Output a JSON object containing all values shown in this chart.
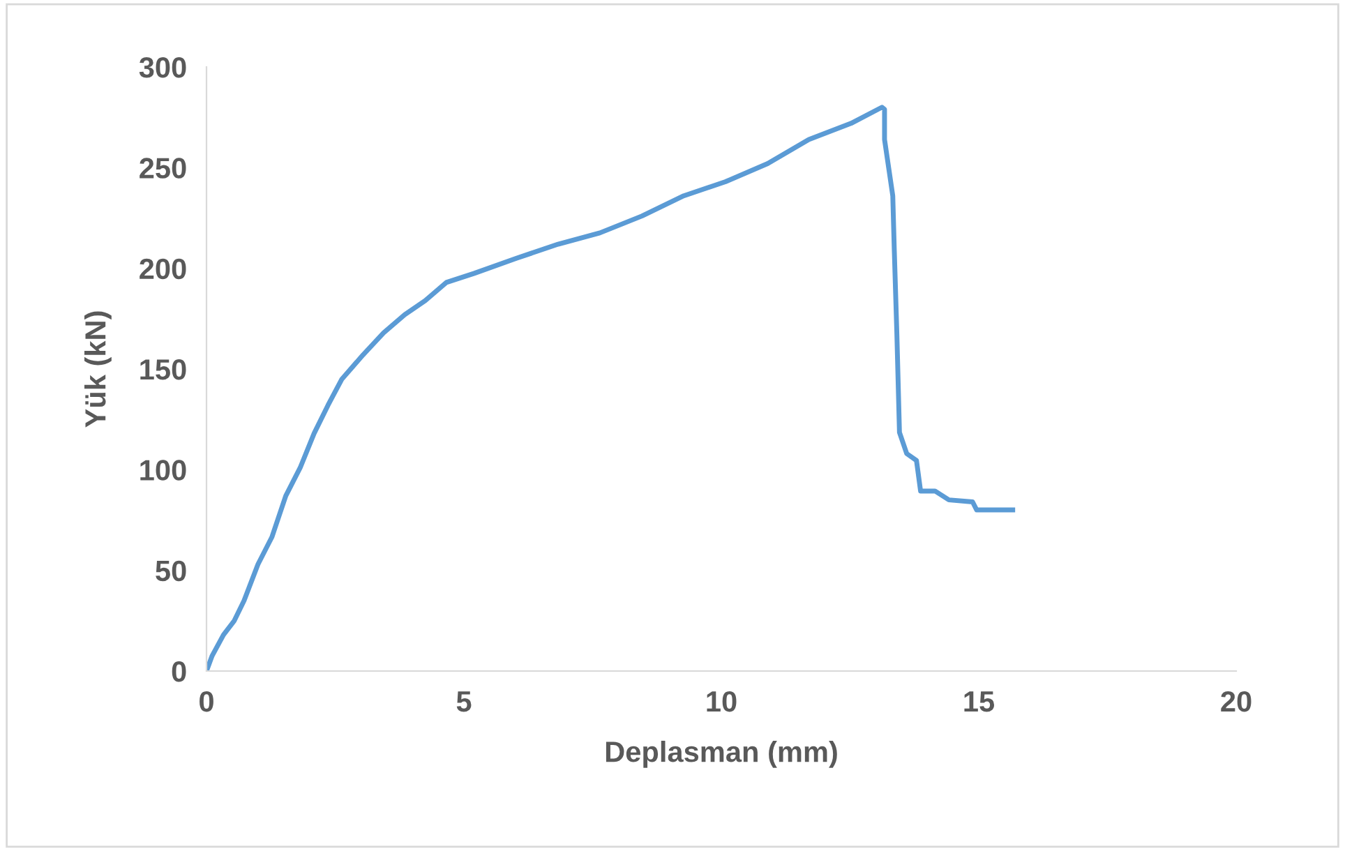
{
  "chart_data": {
    "type": "line",
    "xlabel": "Deplasman (mm)",
    "ylabel": "Yük (kN)",
    "xlim": [
      0,
      20
    ],
    "xticks": [
      0,
      5,
      10,
      15,
      20
    ],
    "ylim": [
      0,
      300
    ],
    "yticks": [
      0,
      50,
      100,
      150,
      200,
      250,
      300
    ],
    "grid": false,
    "marker": "none",
    "line_style": "solid",
    "series": [
      {
        "color": "#5b9bd5",
        "x": [
          0,
          0.11,
          0.33,
          0.54,
          0.73,
          1.0,
          1.27,
          1.54,
          1.82,
          2.09,
          2.36,
          2.63,
          3.04,
          3.44,
          3.85,
          4.25,
          4.66,
          5.2,
          6.02,
          6.83,
          7.64,
          8.46,
          9.27,
          10.08,
          10.9,
          11.7,
          12.52,
          13.12,
          13.17,
          13.17,
          13.33,
          13.36,
          13.41,
          13.46,
          13.6,
          13.79,
          13.87,
          14.15,
          14.42,
          14.88,
          14.96,
          15.66
        ],
        "values": [
          0,
          7.6,
          18,
          25,
          35,
          53,
          66.5,
          87,
          101,
          118,
          132,
          145,
          157,
          168,
          177,
          184,
          193,
          197.5,
          205,
          212,
          217.6,
          226,
          236,
          243,
          252,
          264,
          272,
          280,
          279,
          264,
          236,
          208.6,
          167,
          118.5,
          108,
          104.6,
          89.4,
          89.4,
          85,
          84,
          80,
          80
        ]
      }
    ]
  }
}
